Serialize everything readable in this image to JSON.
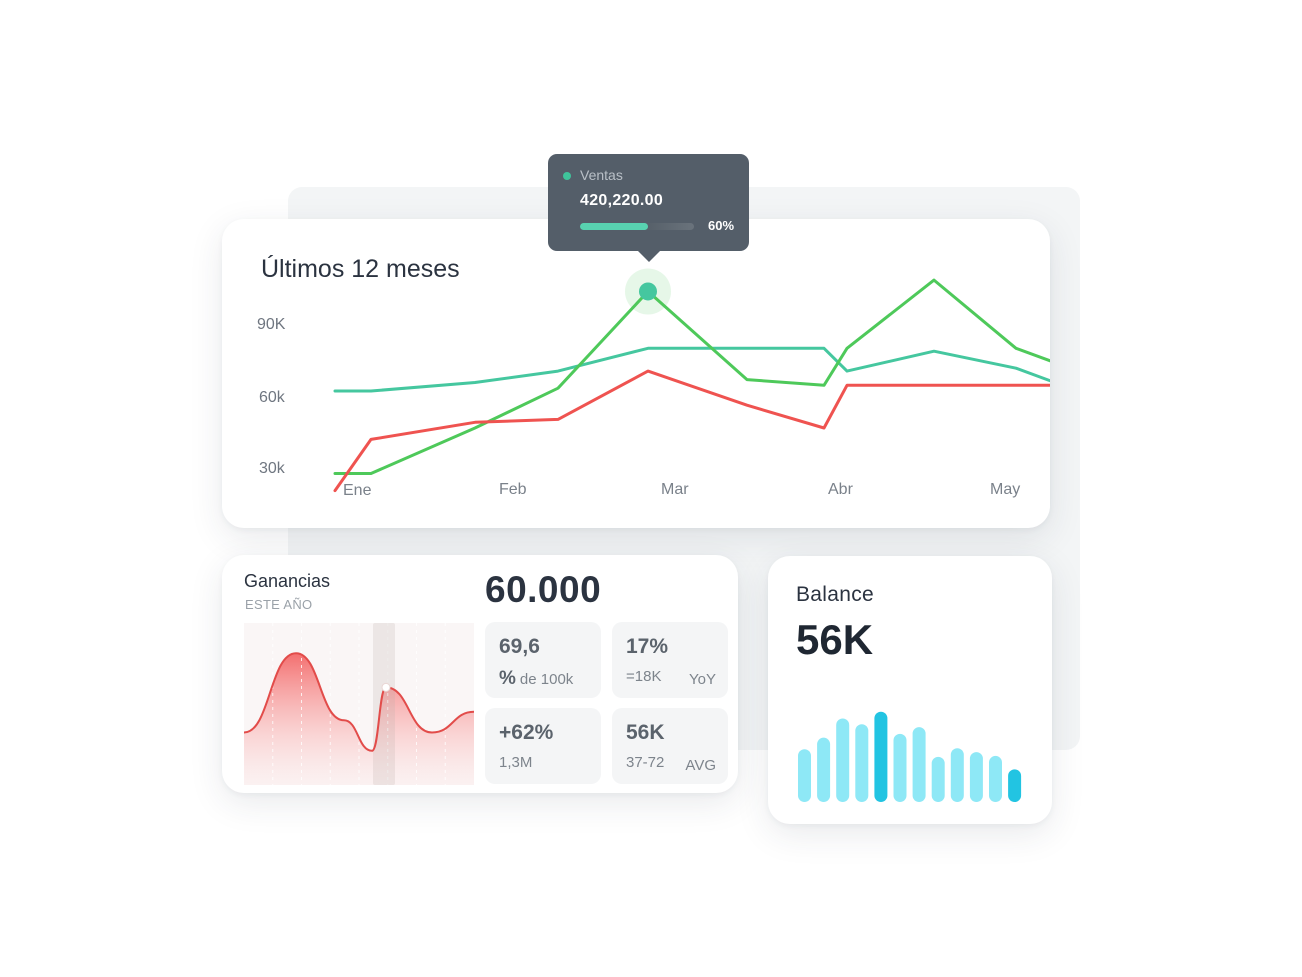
{
  "main_chart": {
    "title": "Últimos 12 meses",
    "y_ticks": [
      "90K",
      "60k",
      "30k"
    ],
    "x_ticks": [
      "Ene",
      "Feb",
      "Mar",
      "Abr",
      "May"
    ]
  },
  "tooltip": {
    "label": "Ventas",
    "value": "420,220.00",
    "percent_label": "60%",
    "progress": 0.6
  },
  "earnings": {
    "title": "Ganancias",
    "subtitle": "ESTE AÑO",
    "total": "60.000",
    "stats": [
      {
        "value": "69,6",
        "sub_symbol": "%",
        "sub": "de 100k",
        "right": ""
      },
      {
        "value": "17%",
        "sub_symbol": "",
        "sub": "=18K",
        "right": "YoY"
      },
      {
        "value": "+62%",
        "sub_symbol": "",
        "sub": "1,3M",
        "right": ""
      },
      {
        "value": "56K",
        "sub_symbol": "",
        "sub": "37-72",
        "right": "AVG"
      }
    ]
  },
  "balance": {
    "title": "Balance",
    "value": "56K"
  },
  "colors": {
    "teal": "#45c79f",
    "green": "#4ec95a",
    "red": "#ef5350",
    "tooltip_bg": "#545e69",
    "bar_light": "#8ee8f6",
    "bar_dark": "#22c4e2"
  },
  "chart_data": [
    {
      "type": "line",
      "title": "Últimos 12 meses",
      "x": [
        "Ene",
        "",
        "Feb",
        "",
        "",
        "Mar",
        "",
        "",
        "Abr",
        "",
        "",
        "May"
      ],
      "ylim": [
        20000,
        110000
      ],
      "y_ticks": [
        90000,
        60000,
        30000
      ],
      "series": [
        {
          "color": "#45c79f",
          "values": [
            65000,
            65000,
            68000,
            72000,
            80000,
            80000,
            80000,
            72000,
            79000,
            73000,
            68000,
            68000
          ]
        },
        {
          "color": "#4ec95a",
          "values": [
            36000,
            36000,
            52000,
            66000,
            100000,
            69000,
            67000,
            80000,
            104000,
            80000,
            75000,
            75000
          ]
        },
        {
          "color": "#ef5350",
          "values": [
            30000,
            48000,
            54000,
            55000,
            72000,
            60000,
            52000,
            67000,
            67000,
            67000,
            67000,
            67000
          ]
        }
      ],
      "highlight": {
        "series_index": 1,
        "point_index": 4
      }
    },
    {
      "type": "area",
      "title": "Ganancias",
      "values": [
        0.25,
        0.9,
        0.35,
        0.1,
        0.62,
        0.25,
        0.42
      ],
      "highlight_index": 4
    },
    {
      "type": "bar",
      "title": "Balance",
      "values": [
        55,
        67,
        87,
        81,
        94,
        71,
        78,
        47,
        56,
        52,
        48,
        34
      ],
      "highlight": [
        4,
        11
      ]
    }
  ]
}
